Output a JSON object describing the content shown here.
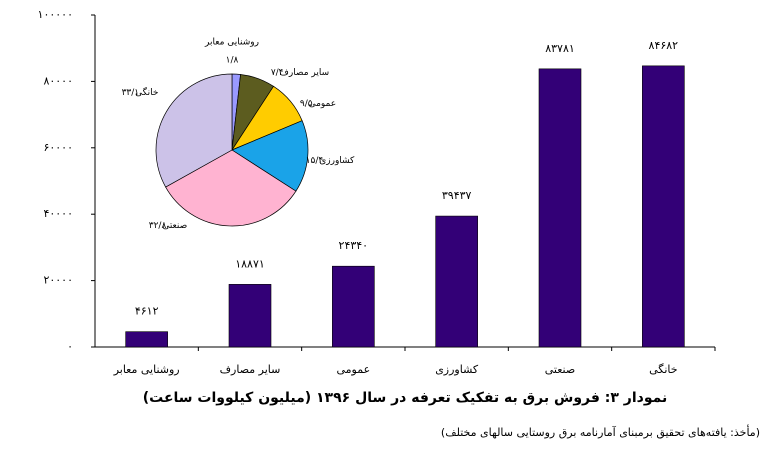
{
  "chart_data": [
    {
      "type": "bar",
      "title": "نمودار ۳: فروش برق به تفکیک تعرفه در سال ۱۳۹۶ (میلیون کیلووات ساعت)",
      "source": "(مأخذ: یافته‌های تحقیق برمبنای آمارنامه برق روستایی سالهای مختلف)",
      "categories": [
        "روشنایی معابر",
        "سایر مصارف",
        "عمومی",
        "کشاورزی",
        "صنعتی",
        "خانگی"
      ],
      "values": [
        4612,
        18871,
        24340,
        39437,
        83781,
        84682
      ],
      "value_labels": [
        "۴۶۱۲",
        "۱۸۸۷۱",
        "۲۴۳۴۰",
        "۳۹۴۳۷",
        "۸۳۷۸۱",
        "۸۴۶۸۲"
      ],
      "color": "#330077",
      "ylim": [
        0,
        100000
      ],
      "yticks": [
        {
          "value": 0,
          "label": "۰"
        },
        {
          "value": 20000,
          "label": "۲۰۰۰۰"
        },
        {
          "value": 40000,
          "label": "۴۰۰۰۰"
        },
        {
          "value": 60000,
          "label": "۶۰۰۰۰"
        },
        {
          "value": 80000,
          "label": "۸۰۰۰۰"
        },
        {
          "value": 100000,
          "label": "۱۰۰۰۰۰"
        }
      ],
      "grid": false
    },
    {
      "type": "pie",
      "categories": [
        "روشنایی معابر",
        "سایر مصارف",
        "عمومی",
        "کشاورزی",
        "صنعتی",
        "خانگی"
      ],
      "values": [
        1.8,
        7.4,
        9.5,
        15.4,
        32.8,
        33.1
      ],
      "value_labels": [
        "۱/۸",
        "۷/۴",
        "۹/۵",
        "۱۵/۴",
        "۳۲/۸",
        "۳۳/۱"
      ],
      "colors": [
        "#9999ff",
        "#5c5c1f",
        "#ffcc00",
        "#1aa3e8",
        "#ffb3d1",
        "#ccc2e8"
      ]
    }
  ]
}
